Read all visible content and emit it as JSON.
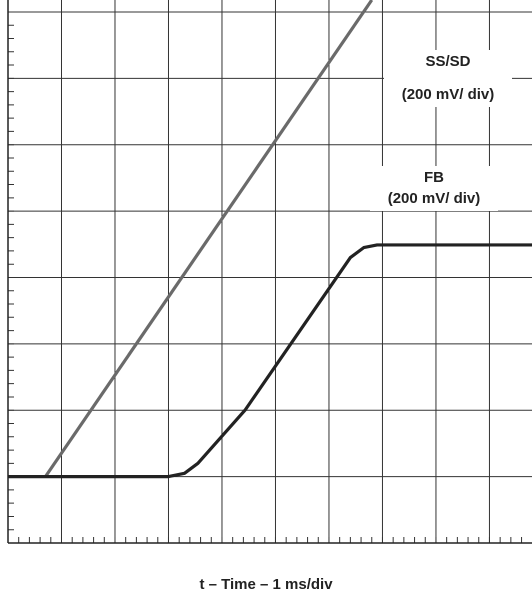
{
  "chart_data": {
    "type": "line",
    "x_label": "t – Time – 1 ms/div",
    "xlim": [
      0,
      9.9
    ],
    "ylim": [
      0,
      8.18
    ],
    "xticks": [
      0,
      1,
      2,
      3,
      4,
      5,
      6,
      7,
      8,
      9
    ],
    "yticks": [
      0,
      1,
      2,
      3,
      4,
      5,
      6,
      7,
      8
    ],
    "grid": true,
    "minor_ticks_per_div": 5,
    "series": [
      {
        "name": "SS/SD",
        "scale_label": "(200 mV/ div)",
        "color": "#6a6a6a",
        "x": [
          0.7,
          6.8
        ],
        "values": [
          1,
          8.18
        ]
      },
      {
        "name": "FB",
        "scale_label": "(200 mV/ div)",
        "color": "#222222",
        "x": [
          0,
          3.0,
          3.3,
          3.55,
          4.43,
          6.4,
          6.65,
          6.9,
          9.9
        ],
        "values": [
          1,
          1,
          1.05,
          1.2,
          2,
          4.3,
          4.45,
          4.49,
          4.49
        ]
      }
    ]
  }
}
